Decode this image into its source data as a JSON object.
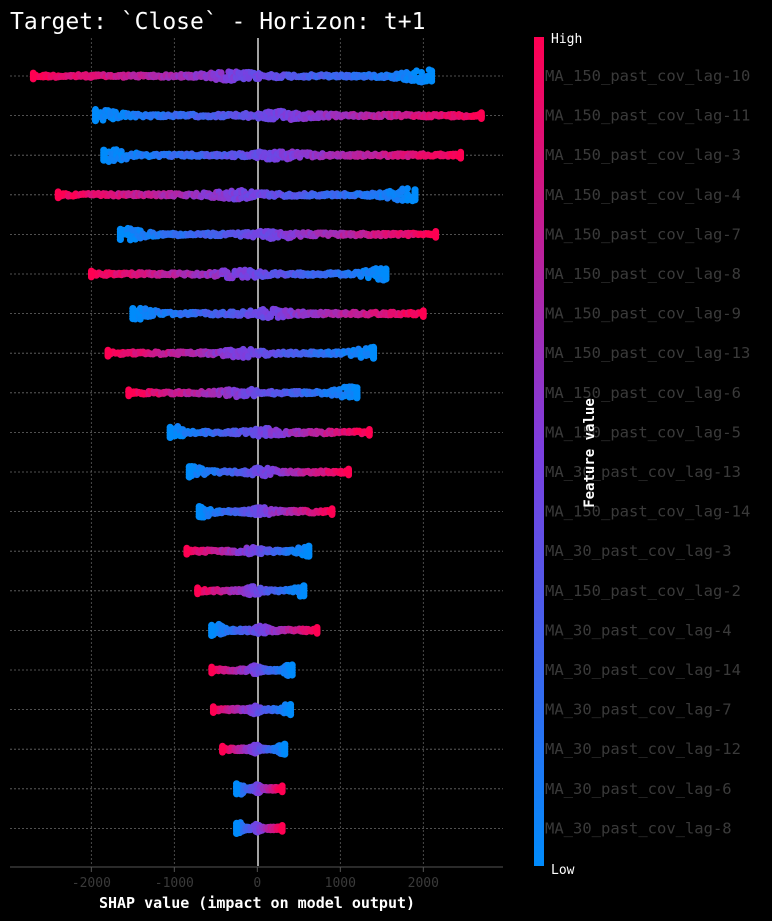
{
  "chart_data": {
    "type": "scatter",
    "subtype": "shap-beeswarm",
    "title": "Target: `Close` - Horizon: t+1",
    "xlabel": "SHAP value (impact on model output)",
    "xlim": [
      -2980,
      2960
    ],
    "xticks": [
      -2000,
      -1000,
      0,
      1000,
      2000
    ],
    "tick_labels": [
      "-2000",
      "-1000",
      "0",
      "1000",
      "2000"
    ],
    "grid": true,
    "colorbar": {
      "label": "Feature value",
      "high_label": "High",
      "low_label": "Low",
      "high_color": "#ff0052",
      "mid_color": "#7b3fe0",
      "low_color": "#008bfb"
    },
    "features": [
      {
        "name": "MA_150_past_cov_lag-10",
        "min": -2700,
        "max": 2100,
        "low_end": "right",
        "low_extent": 2100,
        "high_extent": -2700,
        "mid_center": -300,
        "peak": 2000,
        "peak_end": "right"
      },
      {
        "name": "MA_150_past_cov_lag-11",
        "min": -1950,
        "max": 2700,
        "low_end": "left",
        "low_extent": -1950,
        "high_extent": 2700,
        "mid_center": 300,
        "peak": -1950,
        "peak_end": "left"
      },
      {
        "name": "MA_150_past_cov_lag-3",
        "min": -1850,
        "max": 2450,
        "low_end": "left",
        "low_extent": -1850,
        "high_extent": 2450,
        "mid_center": 250,
        "peak": -1800,
        "peak_end": "left"
      },
      {
        "name": "MA_150_past_cov_lag-4",
        "min": -2400,
        "max": 1900,
        "low_end": "right",
        "low_extent": 1900,
        "high_extent": -2400,
        "mid_center": -250,
        "peak": 1800,
        "peak_end": "right"
      },
      {
        "name": "MA_150_past_cov_lag-7",
        "min": -1650,
        "max": 2150,
        "low_end": "left",
        "low_extent": -1650,
        "high_extent": 2150,
        "mid_center": 200,
        "peak": -1600,
        "peak_end": "left"
      },
      {
        "name": "MA_150_past_cov_lag-8",
        "min": -2000,
        "max": 1550,
        "low_end": "right",
        "low_extent": 1550,
        "high_extent": -2000,
        "mid_center": -200,
        "peak": 1500,
        "peak_end": "right"
      },
      {
        "name": "MA_150_past_cov_lag-9",
        "min": -1500,
        "max": 2000,
        "low_end": "left",
        "low_extent": -1500,
        "high_extent": 2000,
        "mid_center": 150,
        "peak": -1450,
        "peak_end": "left"
      },
      {
        "name": "MA_150_past_cov_lag-13",
        "min": -1800,
        "max": 1400,
        "low_end": "right",
        "low_extent": 1400,
        "high_extent": -1800,
        "mid_center": -200,
        "peak": 1350,
        "peak_end": "right"
      },
      {
        "name": "MA_150_past_cov_lag-6",
        "min": -1550,
        "max": 1200,
        "low_end": "right",
        "low_extent": 1200,
        "high_extent": -1550,
        "mid_center": -200,
        "peak": 1100,
        "peak_end": "right"
      },
      {
        "name": "MA_150_past_cov_lag-5",
        "min": -1050,
        "max": 1350,
        "low_end": "left",
        "low_extent": -1050,
        "high_extent": 1350,
        "mid_center": 100,
        "peak": -1000,
        "peak_end": "left"
      },
      {
        "name": "MA_30_past_cov_lag-13",
        "min": -820,
        "max": 1100,
        "low_end": "left",
        "low_extent": -820,
        "high_extent": 1100,
        "mid_center": 50,
        "peak": -780,
        "peak_end": "left"
      },
      {
        "name": "MA_150_past_cov_lag-14",
        "min": -700,
        "max": 900,
        "low_end": "left",
        "low_extent": -700,
        "high_extent": 900,
        "mid_center": 50,
        "peak": -650,
        "peak_end": "left"
      },
      {
        "name": "MA_30_past_cov_lag-3",
        "min": -850,
        "max": 620,
        "low_end": "right",
        "low_extent": 620,
        "high_extent": -850,
        "mid_center": -50,
        "peak": 580,
        "peak_end": "right"
      },
      {
        "name": "MA_150_past_cov_lag-2",
        "min": -720,
        "max": 560,
        "low_end": "right",
        "low_extent": 560,
        "high_extent": -720,
        "mid_center": -50,
        "peak": 520,
        "peak_end": "right"
      },
      {
        "name": "MA_30_past_cov_lag-4",
        "min": -550,
        "max": 720,
        "low_end": "left",
        "low_extent": -550,
        "high_extent": 720,
        "mid_center": 50,
        "peak": -480,
        "peak_end": "left"
      },
      {
        "name": "MA_30_past_cov_lag-14",
        "min": -550,
        "max": 420,
        "low_end": "right",
        "low_extent": 420,
        "high_extent": -550,
        "mid_center": -30,
        "peak": 380,
        "peak_end": "right"
      },
      {
        "name": "MA_30_past_cov_lag-7",
        "min": -530,
        "max": 400,
        "low_end": "right",
        "low_extent": 400,
        "high_extent": -530,
        "mid_center": -30,
        "peak": 370,
        "peak_end": "right"
      },
      {
        "name": "MA_30_past_cov_lag-12",
        "min": -420,
        "max": 330,
        "low_end": "right",
        "low_extent": 330,
        "high_extent": -420,
        "mid_center": -20,
        "peak": 300,
        "peak_end": "right"
      },
      {
        "name": "MA_30_past_cov_lag-6",
        "min": -250,
        "max": 300,
        "low_end": "left",
        "low_extent": -250,
        "high_extent": 300,
        "mid_center": 0,
        "peak": -200,
        "peak_end": "left"
      },
      {
        "name": "MA_30_past_cov_lag-8",
        "min": -250,
        "max": 300,
        "low_end": "left",
        "low_extent": -250,
        "high_extent": 300,
        "mid_center": 0,
        "peak": -200,
        "peak_end": "left"
      }
    ]
  }
}
